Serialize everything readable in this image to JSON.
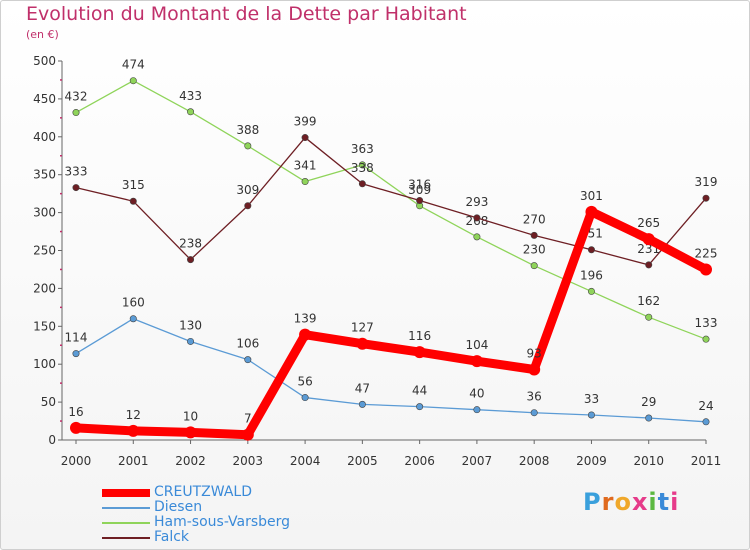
{
  "title": "Evolution du Montant de la Dette par Habitant",
  "subtitle": "(en €)",
  "logo": "Proxiti",
  "chart_data": {
    "type": "line",
    "title": "Evolution du Montant de la Dette par Habitant",
    "subtitle": "(en €)",
    "xlabel": "",
    "ylabel": "",
    "x": [
      "2000",
      "2001",
      "2002",
      "2003",
      "2004",
      "2005",
      "2006",
      "2007",
      "2008",
      "2009",
      "2010",
      "2011"
    ],
    "ylim": [
      0,
      500
    ],
    "yticks": [
      0,
      50,
      100,
      150,
      200,
      250,
      300,
      350,
      400,
      450,
      500
    ],
    "grid": false,
    "legend": "bottom-left",
    "series": [
      {
        "name": "CREUTZWALD",
        "color": "#ff0000",
        "values": [
          16,
          12,
          10,
          7,
          139,
          127,
          116,
          104,
          93,
          301,
          265,
          225
        ]
      },
      {
        "name": "Diesen",
        "color": "#5b9bd5",
        "values": [
          114,
          160,
          130,
          106,
          56,
          47,
          44,
          40,
          36,
          33,
          29,
          24
        ]
      },
      {
        "name": "Ham-sous-Varsberg",
        "color": "#8fd45a",
        "values": [
          432,
          474,
          433,
          388,
          341,
          363,
          309,
          268,
          230,
          196,
          162,
          133
        ]
      },
      {
        "name": "Falck",
        "color": "#6e1f24",
        "values": [
          333,
          315,
          238,
          309,
          399,
          338,
          316,
          293,
          270,
          251,
          231,
          319
        ]
      }
    ]
  }
}
